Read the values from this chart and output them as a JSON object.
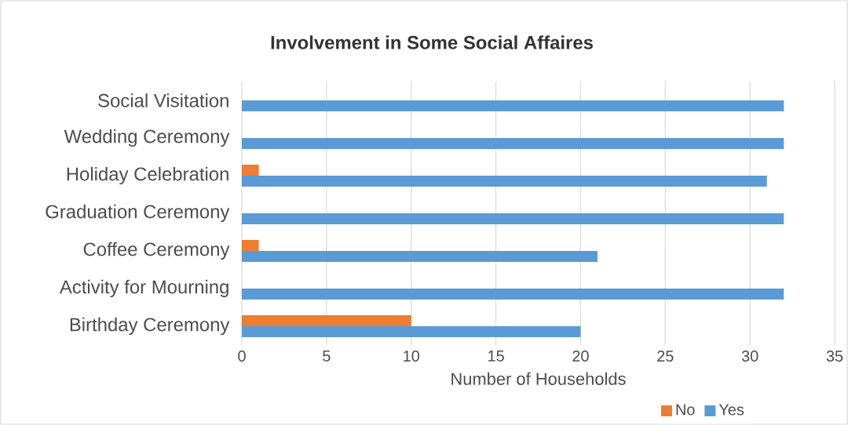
{
  "chart_data": {
    "type": "bar",
    "orientation": "horizontal",
    "title": "Involvement in Some Social Affaires",
    "xlabel": "Number of Households",
    "categories": [
      "Social Visitation",
      "Wedding Ceremony",
      "Holiday Celebration",
      "Graduation Ceremony",
      "Coffee Ceremony",
      "Activity for Mourning",
      "Birthday Ceremony"
    ],
    "series": [
      {
        "name": "No",
        "color": "#ed7d31",
        "values": [
          0,
          0,
          1,
          0,
          1,
          0,
          10
        ]
      },
      {
        "name": "Yes",
        "color": "#5b9bd5",
        "values": [
          32,
          32,
          31,
          32,
          21,
          32,
          20
        ]
      }
    ],
    "xlim": [
      0,
      35
    ],
    "xticks": [
      0,
      5,
      10,
      15,
      20,
      25,
      30,
      35
    ],
    "grid": "x",
    "legend": "bottom right"
  }
}
